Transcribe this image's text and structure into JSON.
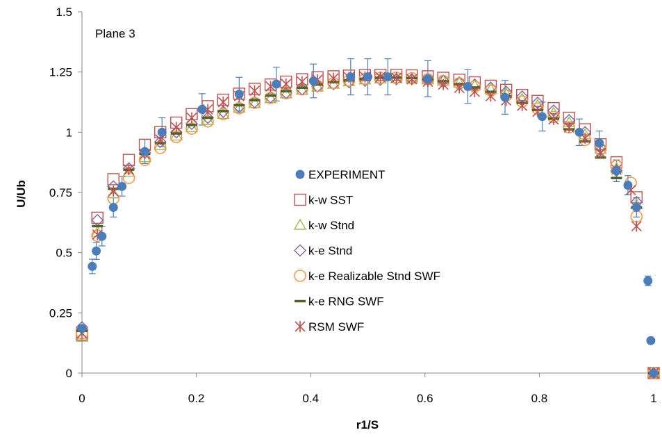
{
  "chart_data": {
    "type": "scatter",
    "title": "",
    "annotation": "Plane 3",
    "xlabel": "r1/S",
    "ylabel": "U/Ub",
    "xlim": [
      0,
      1
    ],
    "ylim": [
      0,
      1.5
    ],
    "x_ticks": [
      "0",
      "0.2",
      "0.4",
      "0.6",
      "0.8",
      "1"
    ],
    "y_ticks": [
      "0",
      "0.25",
      "0.5",
      "0.75",
      "1",
      "1.25",
      "1.5"
    ],
    "grid": false,
    "legend_position": "center",
    "series": [
      {
        "name": "EXPERIMENT",
        "marker": "filled-circle",
        "color": "#4A7EBB",
        "points": [
          [
            0.0,
            0.185
          ],
          [
            0.018,
            0.443
          ],
          [
            0.025,
            0.507
          ],
          [
            0.035,
            0.568
          ],
          [
            0.055,
            0.688
          ],
          [
            0.07,
            0.775
          ],
          [
            0.11,
            0.92
          ],
          [
            0.14,
            1.0
          ],
          [
            0.21,
            1.095
          ],
          [
            0.275,
            1.158
          ],
          [
            0.34,
            1.2
          ],
          [
            0.405,
            1.213
          ],
          [
            0.47,
            1.23
          ],
          [
            0.5,
            1.23
          ],
          [
            0.535,
            1.23
          ],
          [
            0.605,
            1.222
          ],
          [
            0.675,
            1.19
          ],
          [
            0.74,
            1.145
          ],
          [
            0.805,
            1.065
          ],
          [
            0.87,
            1.0
          ],
          [
            0.905,
            0.955
          ],
          [
            0.935,
            0.84
          ],
          [
            0.955,
            0.78
          ],
          [
            0.97,
            0.688
          ],
          [
            0.99,
            0.383
          ],
          [
            0.995,
            0.135
          ],
          [
            1.0,
            0.0
          ]
        ],
        "error": [
          0,
          0.03,
          0.035,
          0.04,
          0.04,
          0.04,
          0.05,
          0.06,
          0.065,
          0.07,
          0.07,
          0.07,
          0.075,
          0.075,
          0.075,
          0.075,
          0.07,
          0.07,
          0.06,
          0.055,
          0.05,
          0.045,
          0.04,
          0.04,
          0.02,
          0,
          0
        ]
      },
      {
        "name": "k-w SST",
        "marker": "open-square",
        "color": "#C0504D",
        "points": [
          [
            0.0,
            0.16
          ],
          [
            0.027,
            0.645
          ],
          [
            0.055,
            0.805
          ],
          [
            0.082,
            0.885
          ],
          [
            0.11,
            0.948
          ],
          [
            0.137,
            1.0
          ],
          [
            0.165,
            1.04
          ],
          [
            0.192,
            1.075
          ],
          [
            0.22,
            1.108
          ],
          [
            0.247,
            1.135
          ],
          [
            0.275,
            1.16
          ],
          [
            0.302,
            1.18
          ],
          [
            0.33,
            1.198
          ],
          [
            0.357,
            1.21
          ],
          [
            0.385,
            1.22
          ],
          [
            0.412,
            1.228
          ],
          [
            0.44,
            1.232
          ],
          [
            0.467,
            1.235
          ],
          [
            0.495,
            1.237
          ],
          [
            0.522,
            1.238
          ],
          [
            0.55,
            1.238
          ],
          [
            0.577,
            1.236
          ],
          [
            0.605,
            1.232
          ],
          [
            0.632,
            1.226
          ],
          [
            0.66,
            1.218
          ],
          [
            0.687,
            1.207
          ],
          [
            0.715,
            1.193
          ],
          [
            0.742,
            1.176
          ],
          [
            0.77,
            1.155
          ],
          [
            0.797,
            1.13
          ],
          [
            0.825,
            1.1
          ],
          [
            0.852,
            1.06
          ],
          [
            0.88,
            1.012
          ],
          [
            0.907,
            0.95
          ],
          [
            0.935,
            0.875
          ],
          [
            0.97,
            0.73
          ],
          [
            1.0,
            0.0
          ]
        ]
      },
      {
        "name": "k-w Stnd",
        "marker": "open-triangle",
        "color": "#9BBB59",
        "points": [
          [
            0.0,
            0.15
          ],
          [
            0.027,
            0.585
          ],
          [
            0.055,
            0.745
          ],
          [
            0.082,
            0.835
          ],
          [
            0.11,
            0.895
          ],
          [
            0.137,
            0.945
          ],
          [
            0.165,
            0.985
          ],
          [
            0.192,
            1.02
          ],
          [
            0.22,
            1.05
          ],
          [
            0.247,
            1.075
          ],
          [
            0.275,
            1.1
          ],
          [
            0.302,
            1.12
          ],
          [
            0.33,
            1.14
          ],
          [
            0.357,
            1.16
          ],
          [
            0.385,
            1.175
          ],
          [
            0.412,
            1.188
          ],
          [
            0.44,
            1.2
          ],
          [
            0.467,
            1.21
          ],
          [
            0.495,
            1.218
          ],
          [
            0.522,
            1.222
          ],
          [
            0.55,
            1.223
          ],
          [
            0.577,
            1.222
          ],
          [
            0.605,
            1.218
          ],
          [
            0.632,
            1.213
          ],
          [
            0.66,
            1.205
          ],
          [
            0.687,
            1.193
          ],
          [
            0.715,
            1.178
          ],
          [
            0.742,
            1.16
          ],
          [
            0.77,
            1.138
          ],
          [
            0.797,
            1.112
          ],
          [
            0.825,
            1.08
          ],
          [
            0.852,
            1.04
          ],
          [
            0.88,
            0.99
          ],
          [
            0.907,
            0.93
          ],
          [
            0.935,
            0.85
          ],
          [
            0.97,
            0.7
          ],
          [
            1.0,
            0.0
          ]
        ]
      },
      {
        "name": "k-e Stnd",
        "marker": "open-diamond",
        "color": "#7F64A2",
        "points": [
          [
            0.0,
            0.19
          ],
          [
            0.027,
            0.635
          ],
          [
            0.055,
            0.775
          ],
          [
            0.082,
            0.85
          ],
          [
            0.11,
            0.915
          ],
          [
            0.137,
            0.96
          ],
          [
            0.165,
            1.0
          ],
          [
            0.192,
            1.035
          ],
          [
            0.22,
            1.06
          ],
          [
            0.247,
            1.085
          ],
          [
            0.275,
            1.105
          ],
          [
            0.302,
            1.125
          ],
          [
            0.33,
            1.145
          ],
          [
            0.357,
            1.163
          ],
          [
            0.385,
            1.178
          ],
          [
            0.412,
            1.19
          ],
          [
            0.44,
            1.2
          ],
          [
            0.467,
            1.208
          ],
          [
            0.495,
            1.214
          ],
          [
            0.522,
            1.218
          ],
          [
            0.55,
            1.22
          ],
          [
            0.577,
            1.22
          ],
          [
            0.605,
            1.218
          ],
          [
            0.632,
            1.214
          ],
          [
            0.66,
            1.207
          ],
          [
            0.687,
            1.198
          ],
          [
            0.715,
            1.185
          ],
          [
            0.742,
            1.168
          ],
          [
            0.77,
            1.148
          ],
          [
            0.797,
            1.122
          ],
          [
            0.825,
            1.09
          ],
          [
            0.852,
            1.05
          ],
          [
            0.88,
            1.0
          ],
          [
            0.907,
            0.935
          ],
          [
            0.935,
            0.84
          ],
          [
            0.97,
            0.71
          ],
          [
            1.0,
            0.0
          ]
        ]
      },
      {
        "name": "k-e Realizable Stnd SWF",
        "marker": "open-circle",
        "color": "#F79646",
        "points": [
          [
            0.0,
            0.165
          ],
          [
            0.027,
            0.57
          ],
          [
            0.055,
            0.725
          ],
          [
            0.082,
            0.81
          ],
          [
            0.11,
            0.885
          ],
          [
            0.137,
            0.935
          ],
          [
            0.165,
            0.98
          ],
          [
            0.192,
            1.015
          ],
          [
            0.22,
            1.045
          ],
          [
            0.247,
            1.075
          ],
          [
            0.275,
            1.1
          ],
          [
            0.302,
            1.122
          ],
          [
            0.33,
            1.143
          ],
          [
            0.357,
            1.162
          ],
          [
            0.385,
            1.178
          ],
          [
            0.412,
            1.192
          ],
          [
            0.44,
            1.204
          ],
          [
            0.467,
            1.214
          ],
          [
            0.495,
            1.221
          ],
          [
            0.522,
            1.225
          ],
          [
            0.55,
            1.226
          ],
          [
            0.577,
            1.224
          ],
          [
            0.605,
            1.22
          ],
          [
            0.632,
            1.213
          ],
          [
            0.66,
            1.203
          ],
          [
            0.687,
            1.19
          ],
          [
            0.715,
            1.173
          ],
          [
            0.742,
            1.153
          ],
          [
            0.77,
            1.128
          ],
          [
            0.797,
            1.098
          ],
          [
            0.825,
            1.063
          ],
          [
            0.852,
            1.02
          ],
          [
            0.88,
            0.968
          ],
          [
            0.907,
            0.93
          ],
          [
            0.935,
            0.86
          ],
          [
            0.96,
            0.79
          ],
          [
            0.97,
            0.65
          ],
          [
            1.0,
            0.0
          ]
        ]
      },
      {
        "name": "k-e RNG SWF",
        "marker": "dash",
        "color": "#4F6228",
        "points": [
          [
            0.0,
            0.175
          ],
          [
            0.027,
            0.61
          ],
          [
            0.055,
            0.765
          ],
          [
            0.082,
            0.845
          ],
          [
            0.11,
            0.91
          ],
          [
            0.137,
            0.955
          ],
          [
            0.165,
            0.995
          ],
          [
            0.192,
            1.03
          ],
          [
            0.22,
            1.06
          ],
          [
            0.247,
            1.088
          ],
          [
            0.275,
            1.112
          ],
          [
            0.302,
            1.133
          ],
          [
            0.33,
            1.152
          ],
          [
            0.357,
            1.17
          ],
          [
            0.385,
            1.185
          ],
          [
            0.412,
            1.198
          ],
          [
            0.44,
            1.208
          ],
          [
            0.467,
            1.216
          ],
          [
            0.495,
            1.222
          ],
          [
            0.522,
            1.226
          ],
          [
            0.55,
            1.227
          ],
          [
            0.577,
            1.225
          ],
          [
            0.605,
            1.22
          ],
          [
            0.632,
            1.212
          ],
          [
            0.66,
            1.2
          ],
          [
            0.687,
            1.186
          ],
          [
            0.715,
            1.168
          ],
          [
            0.742,
            1.148
          ],
          [
            0.77,
            1.122
          ],
          [
            0.797,
            1.092
          ],
          [
            0.825,
            1.056
          ],
          [
            0.852,
            1.012
          ],
          [
            0.88,
            0.962
          ],
          [
            0.907,
            0.895
          ],
          [
            0.935,
            0.81
          ],
          [
            0.97,
            0.688
          ],
          [
            1.0,
            0.0
          ]
        ]
      },
      {
        "name": "RSM SWF",
        "marker": "asterisk",
        "color": "#C0504D",
        "points": [
          [
            0.0,
            0.165
          ],
          [
            0.027,
            0.575
          ],
          [
            0.055,
            0.755
          ],
          [
            0.082,
            0.845
          ],
          [
            0.11,
            0.91
          ],
          [
            0.137,
            0.97
          ],
          [
            0.165,
            1.02
          ],
          [
            0.192,
            1.06
          ],
          [
            0.22,
            1.095
          ],
          [
            0.247,
            1.125
          ],
          [
            0.275,
            1.15
          ],
          [
            0.302,
            1.172
          ],
          [
            0.33,
            1.19
          ],
          [
            0.357,
            1.2
          ],
          [
            0.385,
            1.21
          ],
          [
            0.412,
            1.218
          ],
          [
            0.44,
            1.224
          ],
          [
            0.467,
            1.228
          ],
          [
            0.495,
            1.23
          ],
          [
            0.522,
            1.229
          ],
          [
            0.55,
            1.226
          ],
          [
            0.577,
            1.22
          ],
          [
            0.605,
            1.21
          ],
          [
            0.632,
            1.198
          ],
          [
            0.66,
            1.184
          ],
          [
            0.687,
            1.168
          ],
          [
            0.715,
            1.15
          ],
          [
            0.742,
            1.132
          ],
          [
            0.77,
            1.11
          ],
          [
            0.797,
            1.085
          ],
          [
            0.825,
            1.053
          ],
          [
            0.852,
            1.02
          ],
          [
            0.88,
            0.975
          ],
          [
            0.907,
            0.915
          ],
          [
            0.935,
            0.845
          ],
          [
            0.96,
            0.76
          ],
          [
            0.97,
            0.61
          ],
          [
            1.0,
            0.0
          ]
        ]
      }
    ]
  }
}
